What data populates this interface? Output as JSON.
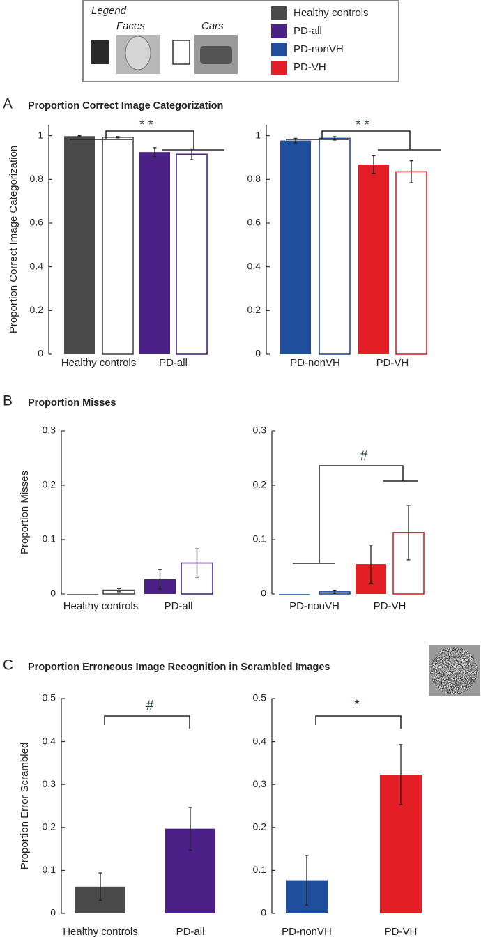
{
  "legend": {
    "title": "Legend",
    "stimuli": [
      "Faces",
      "Cars"
    ],
    "groups": [
      {
        "name": "Healthy controls",
        "color": "#4a4a4a"
      },
      {
        "name": "PD-all",
        "color": "#4b2188"
      },
      {
        "name": "PD-nonVH",
        "color": "#1f4e9c"
      },
      {
        "name": "PD-VH",
        "color": "#e31e24"
      }
    ]
  },
  "chart_data": [
    {
      "type": "bar",
      "panel": "A",
      "title": "Proportion Correct Image Categorization",
      "ylabel": "Proportion Correct Image Categorization",
      "categories": [
        "Healthy controls",
        "PD-all"
      ],
      "colors": [
        "#4a4a4a",
        "#4b2188"
      ],
      "series": [
        {
          "fill": true,
          "values": [
            0.998,
            0.925
          ],
          "errors": [
            0.002,
            0.02
          ]
        },
        {
          "fill": false,
          "values": [
            0.993,
            0.915
          ],
          "errors": [
            0.003,
            0.025
          ]
        }
      ],
      "ylim": [
        0,
        1.05
      ],
      "yticks": [
        0,
        0.2,
        0.4,
        0.6,
        0.8,
        1
      ],
      "annotation": "* *"
    },
    {
      "type": "bar",
      "categories": [
        "PD-nonVH",
        "PD-VH"
      ],
      "colors": [
        "#1f4e9c",
        "#e31e24"
      ],
      "series": [
        {
          "fill": true,
          "values": [
            0.978,
            0.868
          ],
          "errors": [
            0.01,
            0.04
          ]
        },
        {
          "fill": false,
          "values": [
            0.988,
            0.835
          ],
          "errors": [
            0.008,
            0.05
          ]
        }
      ],
      "ylim": [
        0,
        1.05
      ],
      "yticks": [
        0,
        0.2,
        0.4,
        0.6,
        0.8,
        1
      ],
      "annotation": "* *"
    },
    {
      "type": "bar",
      "panel": "B",
      "title": "Proportion Misses",
      "ylabel": "Proportion Misses",
      "categories": [
        "Healthy controls",
        "PD-all"
      ],
      "colors": [
        "#4a4a4a",
        "#4b2188"
      ],
      "series": [
        {
          "fill": true,
          "values": [
            0,
            0.027
          ],
          "errors": [
            0,
            0.018
          ]
        },
        {
          "fill": false,
          "values": [
            0.007,
            0.057
          ],
          "errors": [
            0.003,
            0.026
          ]
        }
      ],
      "ylim": [
        0,
        0.3
      ],
      "yticks": [
        0,
        0.1,
        0.2,
        0.3
      ]
    },
    {
      "type": "bar",
      "categories": [
        "PD-nonVH",
        "PD-VH"
      ],
      "colors": [
        "#1f4e9c",
        "#e31e24"
      ],
      "series": [
        {
          "fill": true,
          "values": [
            0,
            0.055
          ],
          "errors": [
            0,
            0.035
          ]
        },
        {
          "fill": false,
          "values": [
            0.004,
            0.113
          ],
          "errors": [
            0.003,
            0.05
          ]
        }
      ],
      "ylim": [
        0,
        0.3
      ],
      "yticks": [
        0,
        0.1,
        0.2,
        0.3
      ],
      "annotation": "#"
    },
    {
      "type": "bar",
      "panel": "C",
      "title": "Proportion Erroneous Image Recognition in Scrambled Images",
      "ylabel": "Proportion Error Scrambled",
      "categories": [
        "Healthy controls",
        "PD-all"
      ],
      "colors": [
        "#4a4a4a",
        "#4b2188"
      ],
      "series": [
        {
          "fill": true,
          "values": [
            0.062,
            0.197
          ],
          "errors": [
            0.032,
            0.05
          ]
        }
      ],
      "ylim": [
        0,
        0.5
      ],
      "yticks": [
        0,
        0.1,
        0.2,
        0.3,
        0.4,
        0.5
      ],
      "annotation": "#"
    },
    {
      "type": "bar",
      "categories": [
        "PD-nonVH",
        "PD-VH"
      ],
      "colors": [
        "#1f4e9c",
        "#e31e24"
      ],
      "series": [
        {
          "fill": true,
          "values": [
            0.077,
            0.323
          ],
          "errors": [
            0.058,
            0.07
          ]
        }
      ],
      "ylim": [
        0,
        0.5
      ],
      "yticks": [
        0,
        0.1,
        0.2,
        0.3,
        0.4,
        0.5
      ],
      "annotation": "*"
    }
  ]
}
